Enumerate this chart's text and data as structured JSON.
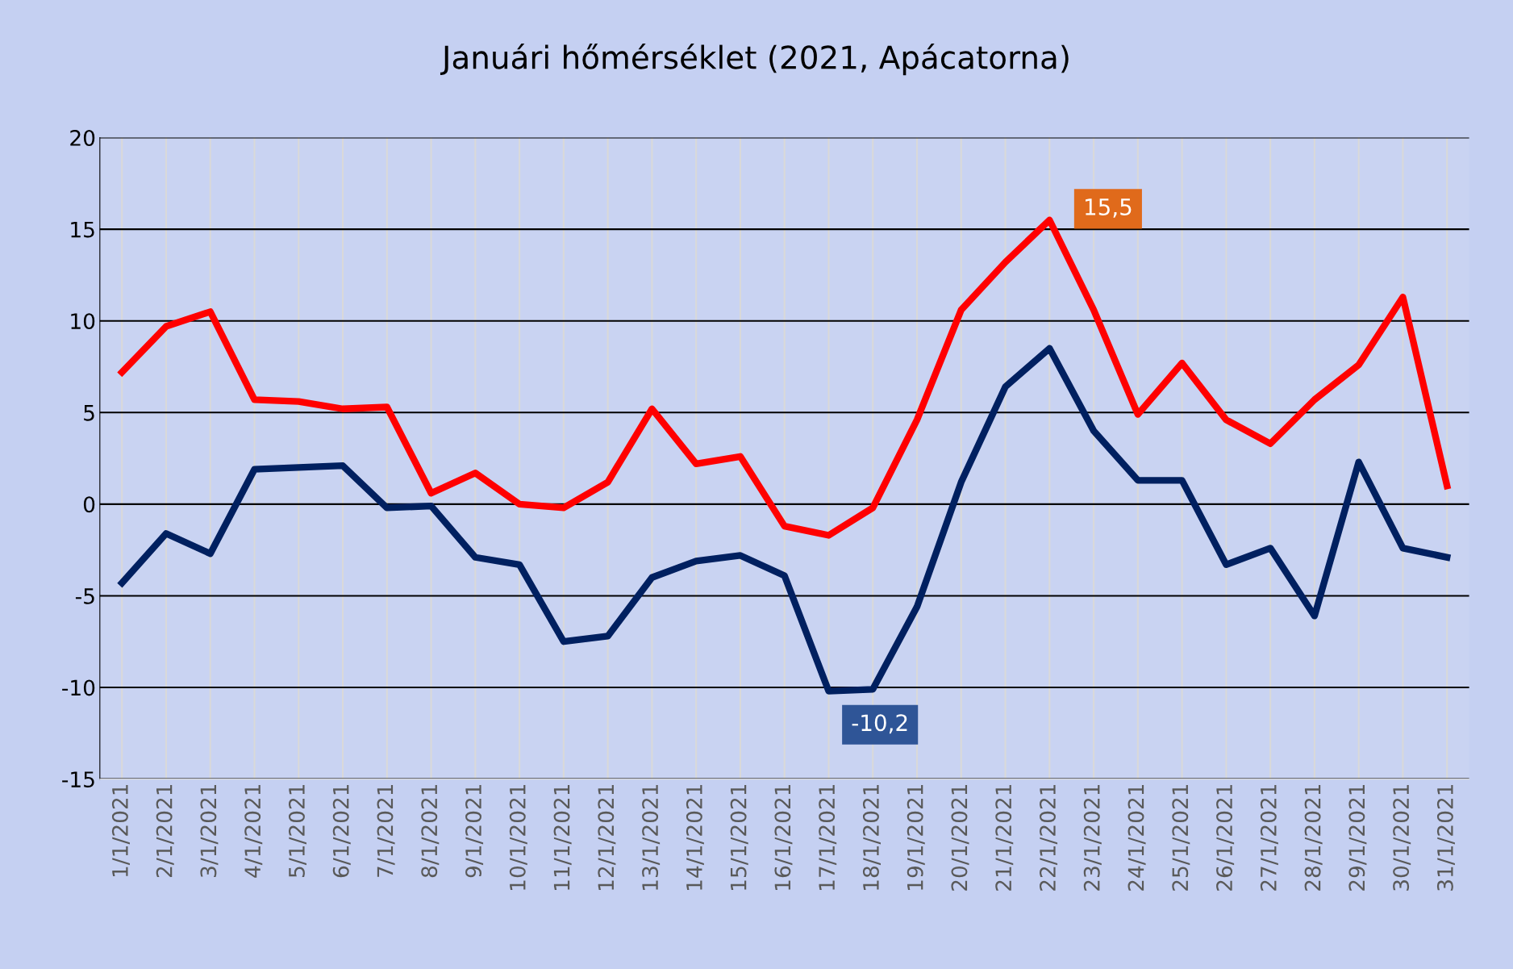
{
  "chart_data": {
    "type": "line",
    "title": "Januári hőmérséklet (2021, Apácatorna)",
    "categories": [
      "1/1/2021",
      "2/1/2021",
      "3/1/2021",
      "4/1/2021",
      "5/1/2021",
      "6/1/2021",
      "7/1/2021",
      "8/1/2021",
      "9/1/2021",
      "10/1/2021",
      "11/1/2021",
      "12/1/2021",
      "13/1/2021",
      "14/1/2021",
      "15/1/2021",
      "16/1/2021",
      "17/1/2021",
      "18/1/2021",
      "19/1/2021",
      "20/1/2021",
      "21/1/2021",
      "22/1/2021",
      "23/1/2021",
      "24/1/2021",
      "25/1/2021",
      "26/1/2021",
      "27/1/2021",
      "28/1/2021",
      "29/1/2021",
      "30/1/2021",
      "31/1/2021"
    ],
    "series": [
      {
        "color": "#ff0000",
        "values": [
          7.2,
          9.7,
          10.5,
          5.7,
          5.6,
          5.2,
          5.3,
          0.6,
          1.7,
          0.0,
          -0.2,
          1.2,
          5.2,
          2.2,
          2.6,
          -1.2,
          -1.7,
          -0.2,
          4.6,
          10.6,
          13.2,
          15.5,
          10.6,
          4.9,
          7.7,
          4.6,
          3.3,
          5.7,
          7.6,
          11.3,
          1.0
        ],
        "value_labels": [
          null,
          null,
          null,
          null,
          null,
          null,
          null,
          null,
          null,
          null,
          null,
          null,
          null,
          null,
          null,
          null,
          null,
          null,
          null,
          null,
          null,
          "15,5",
          null,
          null,
          null,
          null,
          null,
          null,
          null,
          null,
          null
        ]
      },
      {
        "color": "#002060",
        "values": [
          -4.3,
          -1.6,
          -2.7,
          1.9,
          2.0,
          2.1,
          -0.2,
          -0.1,
          -2.9,
          -3.3,
          -7.5,
          -7.2,
          -4.0,
          -3.1,
          -2.8,
          -3.9,
          -10.2,
          -10.1,
          -5.6,
          1.2,
          6.4,
          8.5,
          4.0,
          1.3,
          1.3,
          -3.3,
          -2.4,
          -6.1,
          2.3,
          -2.4,
          -2.9
        ],
        "value_labels": [
          null,
          null,
          null,
          null,
          null,
          null,
          null,
          null,
          null,
          null,
          null,
          null,
          null,
          null,
          null,
          null,
          "-10,2",
          null,
          null,
          null,
          null,
          null,
          null,
          null,
          null,
          null,
          null,
          null,
          null,
          null,
          null
        ]
      }
    ],
    "ylim": [
      -15,
      20
    ],
    "yticks": [
      -15,
      -10,
      -5,
      0,
      5,
      10,
      15,
      20
    ],
    "grid": true,
    "legend": false,
    "marker": "none",
    "line_style": "solid"
  }
}
